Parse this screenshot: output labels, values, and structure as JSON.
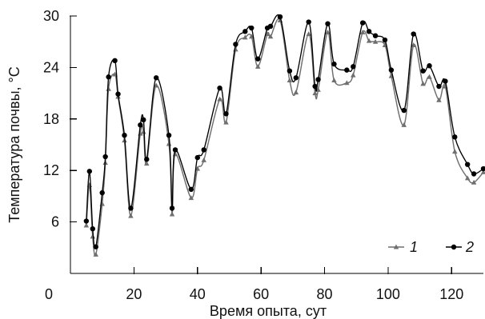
{
  "chart_data": {
    "type": "line",
    "title": "",
    "xlabel": "Время опыта, сут",
    "ylabel": "Температура почвы, °С",
    "xlim": [
      0,
      130
    ],
    "ylim": [
      0,
      30
    ],
    "x_ticks": [
      0,
      20,
      40,
      60,
      80,
      100,
      120
    ],
    "y_ticks": [
      6,
      12,
      18,
      24,
      30
    ],
    "legend_position": "bottom-right",
    "grid": false,
    "series": [
      {
        "name": "1",
        "marker": "triangle",
        "color": "#6f6f6f",
        "points": [
          [
            5,
            5.6
          ],
          [
            6,
            10.3
          ],
          [
            7,
            4.3
          ],
          [
            8,
            2.2
          ],
          [
            10,
            8.1
          ],
          [
            11,
            12.9
          ],
          [
            12,
            21.5
          ],
          [
            14,
            23.2
          ],
          [
            15,
            20.6
          ],
          [
            17,
            15.5
          ],
          [
            19,
            6.7
          ],
          [
            22,
            16.3
          ],
          [
            23,
            16.5
          ],
          [
            24,
            12.8
          ],
          [
            27,
            21.9
          ],
          [
            31,
            15.1
          ],
          [
            32,
            6.9
          ],
          [
            33,
            13.9
          ],
          [
            38,
            8.8
          ],
          [
            40,
            12.2
          ],
          [
            42,
            13.2
          ],
          [
            47,
            20.3
          ],
          [
            49,
            17.6
          ],
          [
            52,
            26.1
          ],
          [
            55,
            27.5
          ],
          [
            57,
            27.6
          ],
          [
            59,
            24.1
          ],
          [
            62,
            27.9
          ],
          [
            63,
            27.6
          ],
          [
            66,
            29.5
          ],
          [
            69,
            22.5
          ],
          [
            71,
            21.1
          ],
          [
            75,
            27.9
          ],
          [
            77,
            21.0
          ],
          [
            78,
            21.4
          ],
          [
            81,
            28.1
          ],
          [
            83,
            22.5
          ],
          [
            87,
            22.2
          ],
          [
            89,
            23.1
          ],
          [
            92,
            28.1
          ],
          [
            94,
            27.1
          ],
          [
            96,
            27.0
          ],
          [
            99,
            26.6
          ],
          [
            101,
            23.0
          ],
          [
            105,
            17.3
          ],
          [
            108,
            26.6
          ],
          [
            111,
            22.1
          ],
          [
            113,
            22.9
          ],
          [
            116,
            20.2
          ],
          [
            118,
            21.8
          ],
          [
            121,
            14.2
          ],
          [
            125,
            11.1
          ],
          [
            127,
            10.6
          ],
          [
            130,
            11.8
          ]
        ]
      },
      {
        "name": "2",
        "marker": "circle",
        "color": "#000000",
        "points": [
          [
            5,
            6.1
          ],
          [
            6,
            11.9
          ],
          [
            7,
            5.2
          ],
          [
            8,
            3.1
          ],
          [
            10,
            9.4
          ],
          [
            11,
            13.6
          ],
          [
            12,
            22.9
          ],
          [
            14,
            24.8
          ],
          [
            15,
            20.9
          ],
          [
            17,
            16.1
          ],
          [
            19,
            7.6
          ],
          [
            22,
            17.3
          ],
          [
            23,
            17.9
          ],
          [
            24,
            13.3
          ],
          [
            27,
            22.8
          ],
          [
            31,
            16.1
          ],
          [
            32,
            7.6
          ],
          [
            33,
            14.4
          ],
          [
            38,
            9.8
          ],
          [
            40,
            13.5
          ],
          [
            42,
            14.4
          ],
          [
            47,
            21.6
          ],
          [
            49,
            18.6
          ],
          [
            52,
            26.7
          ],
          [
            55,
            28.2
          ],
          [
            57,
            28.6
          ],
          [
            59,
            25.0
          ],
          [
            62,
            28.6
          ],
          [
            63,
            28.8
          ],
          [
            66,
            29.9
          ],
          [
            69,
            23.6
          ],
          [
            71,
            22.8
          ],
          [
            75,
            29.3
          ],
          [
            77,
            21.8
          ],
          [
            78,
            22.6
          ],
          [
            81,
            29.1
          ],
          [
            83,
            24.4
          ],
          [
            87,
            23.7
          ],
          [
            89,
            24.1
          ],
          [
            92,
            29.2
          ],
          [
            94,
            28.2
          ],
          [
            96,
            27.7
          ],
          [
            99,
            27.2
          ],
          [
            101,
            23.7
          ],
          [
            105,
            19.0
          ],
          [
            108,
            27.9
          ],
          [
            111,
            23.6
          ],
          [
            113,
            24.2
          ],
          [
            116,
            21.8
          ],
          [
            118,
            22.4
          ],
          [
            121,
            15.9
          ],
          [
            125,
            12.7
          ],
          [
            127,
            11.6
          ],
          [
            130,
            12.2
          ]
        ]
      }
    ]
  }
}
